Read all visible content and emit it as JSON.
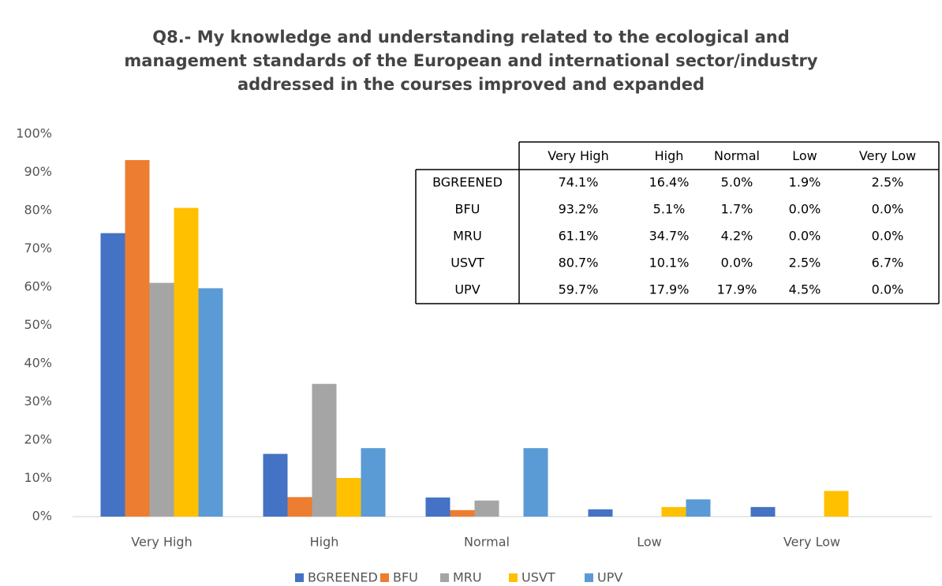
{
  "chart_data": {
    "type": "bar",
    "title": [
      "Q8.- My knowledge and understanding related to the ecological and",
      "management standards of the European and international sector/industry",
      "addressed in the courses improved and expanded"
    ],
    "categories": [
      "Very High",
      "High",
      "Normal",
      "Low",
      "Very Low"
    ],
    "series": [
      {
        "name": "BGREENED",
        "color": "#4472c4",
        "values": [
          74.1,
          16.4,
          5.0,
          1.9,
          2.5
        ],
        "value_labels": [
          "74.1%",
          "16.4%",
          "5.0%",
          "1.9%",
          "2.5%"
        ]
      },
      {
        "name": "BFU",
        "color": "#ed7d31",
        "values": [
          93.2,
          5.1,
          1.7,
          0.0,
          0.0
        ],
        "value_labels": [
          "93.2%",
          "5.1%",
          "1.7%",
          "0.0%",
          "0.0%"
        ]
      },
      {
        "name": "MRU",
        "color": "#a5a5a5",
        "values": [
          61.1,
          34.7,
          4.2,
          0.0,
          0.0
        ],
        "value_labels": [
          "61.1%",
          "34.7%",
          "4.2%",
          "0.0%",
          "0.0%"
        ]
      },
      {
        "name": "USVT",
        "color": "#ffc000",
        "values": [
          80.7,
          10.1,
          0.0,
          2.5,
          6.7
        ],
        "value_labels": [
          "80.7%",
          "10.1%",
          "0.0%",
          "2.5%",
          "6.7%"
        ]
      },
      {
        "name": "UPV",
        "color": "#5b9bd5",
        "values": [
          59.7,
          17.9,
          17.9,
          4.5,
          0.0
        ],
        "value_labels": [
          "59.7%",
          "17.9%",
          "17.9%",
          "4.5%",
          "0.0%"
        ]
      }
    ],
    "ylim": [
      0,
      100
    ],
    "yticks": [
      {
        "value": 0,
        "label": "0%"
      },
      {
        "value": 10,
        "label": "10%"
      },
      {
        "value": 20,
        "label": "20%"
      },
      {
        "value": 30,
        "label": "30%"
      },
      {
        "value": 40,
        "label": "40%"
      },
      {
        "value": 50,
        "label": "50%"
      },
      {
        "value": 60,
        "label": "60%"
      },
      {
        "value": 70,
        "label": "70%"
      },
      {
        "value": 80,
        "label": "80%"
      },
      {
        "value": 90,
        "label": "90%"
      },
      {
        "value": 100,
        "label": "100%"
      }
    ],
    "grid": false,
    "legend": "bottom",
    "data_table": true
  }
}
